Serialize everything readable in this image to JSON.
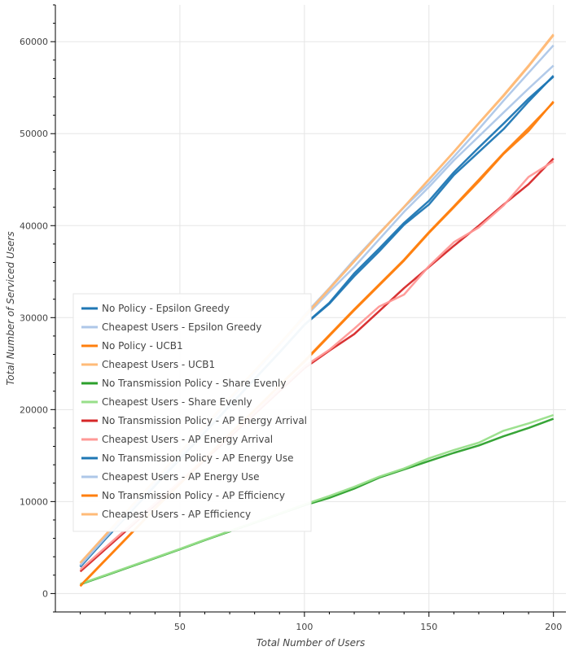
{
  "chart_data": {
    "type": "line",
    "xlabel": "Total Number of Users",
    "ylabel": "Total Number of Serviced Users",
    "xlim": [
      0,
      205
    ],
    "ylim": [
      -2000,
      64000
    ],
    "x_ticks": [
      50,
      100,
      150,
      200
    ],
    "y_ticks": [
      0,
      10000,
      20000,
      30000,
      40000,
      50000,
      60000
    ],
    "grid": true,
    "legend_position": "middle-left",
    "x": [
      10,
      20,
      30,
      40,
      50,
      60,
      70,
      80,
      90,
      100,
      110,
      120,
      130,
      140,
      150,
      160,
      170,
      180,
      190,
      200
    ],
    "series": [
      {
        "name": "No Policy - Epsilon Greedy",
        "color": "#1f77b4",
        "values": [
          2900,
          5900,
          8800,
          11700,
          14600,
          17500,
          20400,
          23300,
          26200,
          29200,
          31500,
          34500,
          37200,
          40100,
          42300,
          45500,
          48000,
          50500,
          53500,
          56300
        ]
      },
      {
        "name": "Cheapest Users - Epsilon Greedy",
        "color": "#aec7e8",
        "values": [
          3100,
          6100,
          9100,
          12000,
          15000,
          18000,
          21000,
          24000,
          27000,
          30000,
          32800,
          35500,
          38500,
          41500,
          44200,
          47100,
          49700,
          52300,
          54900,
          57400
        ]
      },
      {
        "name": "No Policy - UCB1",
        "color": "#ff7f0e",
        "values": [
          800,
          3600,
          6400,
          9200,
          11900,
          14600,
          17300,
          19900,
          22600,
          25200,
          28000,
          30800,
          33500,
          36200,
          39200,
          42000,
          44800,
          47800,
          50300,
          53500
        ]
      },
      {
        "name": "Cheapest Users - UCB1",
        "color": "#ffbb78",
        "values": [
          3300,
          6300,
          9300,
          12300,
          15300,
          18200,
          21200,
          24200,
          27100,
          30100,
          33100,
          36100,
          39100,
          42000,
          45000,
          48000,
          51100,
          54100,
          57300,
          60700
        ]
      },
      {
        "name": "No Transmission Policy - Share Evenly",
        "color": "#2ca02c",
        "values": [
          1000,
          1950,
          2900,
          3850,
          4800,
          5800,
          6750,
          7700,
          8650,
          9600,
          10400,
          11400,
          12600,
          13500,
          14400,
          15300,
          16100,
          17100,
          18000,
          19000
        ]
      },
      {
        "name": "Cheapest Users - Share Evenly",
        "color": "#98df8a",
        "values": [
          1050,
          2000,
          2950,
          3900,
          4850,
          5850,
          6800,
          7750,
          8700,
          9700,
          10600,
          11600,
          12700,
          13600,
          14700,
          15600,
          16400,
          17700,
          18500,
          19400
        ]
      },
      {
        "name": "No Transmission Policy - AP Energy Arrival",
        "color": "#d62728",
        "values": [
          2400,
          4800,
          7200,
          9600,
          12000,
          14500,
          17000,
          19500,
          22000,
          24500,
          26400,
          28200,
          30700,
          33200,
          35500,
          37800,
          40000,
          42300,
          44500,
          47300
        ]
      },
      {
        "name": "Cheapest Users - AP Energy Arrival",
        "color": "#ff9896",
        "values": [
          2600,
          5000,
          7400,
          9800,
          12200,
          14700,
          17200,
          19700,
          22200,
          24700,
          26500,
          28800,
          31200,
          32500,
          35600,
          38200,
          39800,
          42200,
          45300,
          47000
        ]
      },
      {
        "name": "No Transmission Policy - AP Energy Use",
        "color": "#1f77b4",
        "values": [
          2950,
          5950,
          8850,
          11750,
          14650,
          17550,
          20450,
          23350,
          26250,
          29250,
          31600,
          34800,
          37500,
          40300,
          42700,
          45800,
          48500,
          51100,
          53800,
          56200
        ]
      },
      {
        "name": "Cheapest Users - AP Energy Use",
        "color": "#aec7e8",
        "values": [
          3050,
          6050,
          9050,
          12050,
          15050,
          18050,
          21050,
          24050,
          27050,
          30300,
          33200,
          36300,
          39200,
          42000,
          44600,
          47500,
          50500,
          53600,
          56600,
          59600
        ]
      },
      {
        "name": "No Transmission Policy - AP Efficiency",
        "color": "#ff7f0e",
        "values": [
          850,
          3650,
          6450,
          9250,
          11950,
          14650,
          17350,
          19950,
          22650,
          25300,
          28100,
          30900,
          33600,
          36300,
          39300,
          42100,
          45000,
          47900,
          50600,
          53400
        ]
      },
      {
        "name": "Cheapest Users - AP Efficiency",
        "color": "#ffbb78",
        "values": [
          3350,
          6350,
          9350,
          12350,
          15350,
          18250,
          21250,
          24250,
          27150,
          30150,
          33150,
          36150,
          39150,
          42050,
          45050,
          48050,
          51150,
          54200,
          57400,
          60800
        ]
      }
    ]
  }
}
